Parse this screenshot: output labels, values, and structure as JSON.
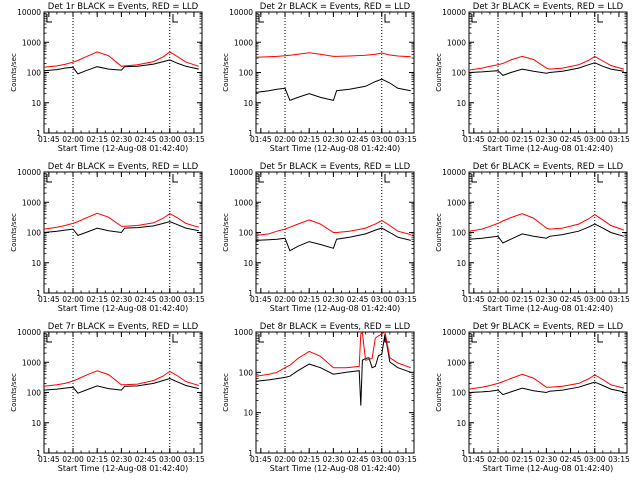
{
  "figure": {
    "colors": {
      "events": "#000000",
      "lld": "#ff0000",
      "axes": "#000000",
      "background": "#ffffff"
    }
  },
  "chart_data": [
    {
      "type": "line",
      "title": "Det 1r BLACK = Events, RED = LLD",
      "xlabel": "Start Time (12-Aug-08 01:42:40)",
      "ylabel": "Counts/sec",
      "y_scale": "log",
      "ylim": [
        1,
        10000
      ],
      "y_tick_labels": [
        "1",
        "10",
        "100",
        "1000",
        "10000"
      ],
      "x_tick_labels": [
        "01:45",
        "02:00",
        "02:15",
        "02:30",
        "02:45",
        "03:00",
        "03:15"
      ],
      "x": [
        "01:42",
        "01:50",
        "01:55",
        "02:00",
        "02:03",
        "02:08",
        "02:15",
        "02:22",
        "02:30",
        "02:32",
        "02:40",
        "02:50",
        "02:56",
        "03:00",
        "03:05",
        "03:10",
        "03:18"
      ],
      "vlines": [
        "02:00",
        "03:00"
      ],
      "series": [
        {
          "name": "Events",
          "values": [
            115,
            125,
            140,
            150,
            90,
            115,
            155,
            130,
            120,
            155,
            160,
            190,
            230,
            260,
            200,
            160,
            130
          ]
        },
        {
          "name": "LLD",
          "values": [
            150,
            165,
            185,
            220,
            250,
            330,
            480,
            360,
            160,
            165,
            180,
            230,
            330,
            480,
            330,
            220,
            160
          ]
        }
      ]
    },
    {
      "type": "line",
      "title": "Det 2r BLACK = Events, RED = LLD",
      "xlabel": "Start Time (12-Aug-08 01:42:40)",
      "ylabel": "Counts/sec",
      "y_scale": "log",
      "ylim": [
        1,
        10000
      ],
      "y_tick_labels": [
        "1",
        "10",
        "100",
        "1000",
        "10000"
      ],
      "x_tick_labels": [
        "01:45",
        "02:00",
        "02:15",
        "02:30",
        "02:45",
        "03:00",
        "03:15"
      ],
      "x": [
        "01:42",
        "01:50",
        "01:55",
        "02:00",
        "02:03",
        "02:08",
        "02:15",
        "02:22",
        "02:30",
        "02:32",
        "02:40",
        "02:50",
        "02:56",
        "03:00",
        "03:05",
        "03:10",
        "03:18"
      ],
      "vlines": [
        "02:00",
        "03:00"
      ],
      "series": [
        {
          "name": "Events",
          "values": [
            22,
            25,
            28,
            30,
            12,
            15,
            20,
            15,
            12,
            25,
            28,
            35,
            50,
            60,
            45,
            30,
            25
          ]
        },
        {
          "name": "LLD",
          "values": [
            320,
            330,
            340,
            360,
            370,
            400,
            450,
            400,
            340,
            340,
            350,
            370,
            400,
            440,
            380,
            350,
            330
          ]
        }
      ]
    },
    {
      "type": "line",
      "title": "Det 3r BLACK = Events, RED = LLD",
      "xlabel": "Start Time (12-Aug-08 01:42:40)",
      "ylabel": "Counts/sec",
      "y_scale": "log",
      "ylim": [
        1,
        10000
      ],
      "y_tick_labels": [
        "1",
        "10",
        "100",
        "1000",
        "10000"
      ],
      "x_tick_labels": [
        "01:45",
        "02:00",
        "02:15",
        "02:30",
        "02:45",
        "03:00",
        "03:15"
      ],
      "x": [
        "01:42",
        "01:50",
        "01:55",
        "02:00",
        "02:03",
        "02:08",
        "02:15",
        "02:22",
        "02:30",
        "02:32",
        "02:40",
        "02:50",
        "02:56",
        "03:00",
        "03:05",
        "03:10",
        "03:18"
      ],
      "vlines": [
        "02:00",
        "03:00"
      ],
      "series": [
        {
          "name": "Events",
          "values": [
            100,
            105,
            110,
            115,
            80,
            100,
            130,
            110,
            95,
            100,
            110,
            140,
            180,
            210,
            160,
            130,
            110
          ]
        },
        {
          "name": "LLD",
          "values": [
            120,
            140,
            160,
            180,
            200,
            260,
            340,
            270,
            140,
            130,
            140,
            180,
            250,
            340,
            240,
            170,
            130
          ]
        }
      ]
    },
    {
      "type": "line",
      "title": "Det 4r BLACK = Events, RED = LLD",
      "xlabel": "Start Time (12-Aug-08 01:42:40)",
      "ylabel": "Counts/sec",
      "y_scale": "log",
      "ylim": [
        1,
        10000
      ],
      "y_tick_labels": [
        "1",
        "10",
        "100",
        "1000",
        "10000"
      ],
      "x_tick_labels": [
        "01:45",
        "02:00",
        "02:15",
        "02:30",
        "02:45",
        "03:00",
        "03:15"
      ],
      "x": [
        "01:42",
        "01:50",
        "01:55",
        "02:00",
        "02:03",
        "02:08",
        "02:15",
        "02:22",
        "02:30",
        "02:32",
        "02:40",
        "02:50",
        "02:56",
        "03:00",
        "03:05",
        "03:10",
        "03:18"
      ],
      "vlines": [
        "02:00",
        "03:00"
      ],
      "series": [
        {
          "name": "Events",
          "values": [
            100,
            110,
            120,
            130,
            80,
            100,
            140,
            115,
            100,
            140,
            145,
            165,
            200,
            230,
            180,
            140,
            115
          ]
        },
        {
          "name": "LLD",
          "values": [
            130,
            150,
            170,
            200,
            230,
            300,
            430,
            320,
            160,
            160,
            170,
            210,
            300,
            420,
            300,
            200,
            150
          ]
        }
      ]
    },
    {
      "type": "line",
      "title": "Det 5r BLACK = Events, RED = LLD",
      "xlabel": "Start Time (12-Aug-08 01:42:40)",
      "ylabel": "Counts/sec",
      "y_scale": "log",
      "ylim": [
        1,
        10000
      ],
      "y_tick_labels": [
        "1",
        "10",
        "100",
        "1000",
        "10000"
      ],
      "x_tick_labels": [
        "01:45",
        "02:00",
        "02:15",
        "02:30",
        "02:45",
        "03:00",
        "03:15"
      ],
      "x": [
        "01:42",
        "01:50",
        "01:55",
        "02:00",
        "02:03",
        "02:08",
        "02:15",
        "02:22",
        "02:30",
        "02:32",
        "02:40",
        "02:50",
        "02:56",
        "03:00",
        "03:05",
        "03:10",
        "03:18"
      ],
      "vlines": [
        "02:00",
        "03:00"
      ],
      "series": [
        {
          "name": "Events",
          "values": [
            55,
            58,
            60,
            65,
            25,
            35,
            50,
            40,
            30,
            60,
            70,
            90,
            120,
            140,
            100,
            70,
            55
          ]
        },
        {
          "name": "LLD",
          "values": [
            80,
            90,
            110,
            130,
            150,
            190,
            260,
            190,
            100,
            100,
            110,
            140,
            190,
            250,
            170,
            110,
            85
          ]
        }
      ]
    },
    {
      "type": "line",
      "title": "Det 6r BLACK = Events, RED = LLD",
      "xlabel": "Start Time (12-Aug-08 01:42:40)",
      "ylabel": "Counts/sec",
      "y_scale": "log",
      "ylim": [
        1,
        10000
      ],
      "y_tick_labels": [
        "1",
        "10",
        "100",
        "1000",
        "10000"
      ],
      "x_tick_labels": [
        "01:45",
        "02:00",
        "02:15",
        "02:30",
        "02:45",
        "03:00",
        "03:15"
      ],
      "x": [
        "01:42",
        "01:50",
        "01:55",
        "02:00",
        "02:03",
        "02:08",
        "02:15",
        "02:22",
        "02:30",
        "02:32",
        "02:40",
        "02:50",
        "02:56",
        "03:00",
        "03:05",
        "03:10",
        "03:18"
      ],
      "vlines": [
        "02:00",
        "03:00"
      ],
      "series": [
        {
          "name": "Events",
          "values": [
            60,
            65,
            70,
            75,
            45,
            60,
            90,
            75,
            65,
            75,
            85,
            110,
            150,
            190,
            140,
            100,
            75
          ]
        },
        {
          "name": "LLD",
          "values": [
            110,
            130,
            160,
            200,
            240,
            310,
            420,
            300,
            140,
            130,
            140,
            190,
            280,
            390,
            260,
            170,
            120
          ]
        }
      ]
    },
    {
      "type": "line",
      "title": "Det 7r BLACK = Events, RED = LLD",
      "xlabel": "Start Time (12-Aug-08 01:42:40)",
      "ylabel": "Counts/sec",
      "y_scale": "log",
      "ylim": [
        1,
        10000
      ],
      "y_tick_labels": [
        "1",
        "10",
        "100",
        "1000",
        "10000"
      ],
      "x_tick_labels": [
        "01:45",
        "02:00",
        "02:15",
        "02:30",
        "02:45",
        "03:00",
        "03:15"
      ],
      "x": [
        "01:42",
        "01:50",
        "01:55",
        "02:00",
        "02:03",
        "02:08",
        "02:15",
        "02:22",
        "02:30",
        "02:32",
        "02:40",
        "02:50",
        "02:56",
        "03:00",
        "03:05",
        "03:10",
        "03:18"
      ],
      "vlines": [
        "02:00",
        "03:00"
      ],
      "series": [
        {
          "name": "Events",
          "values": [
            120,
            130,
            140,
            150,
            95,
            120,
            165,
            135,
            120,
            160,
            165,
            200,
            250,
            290,
            220,
            170,
            135
          ]
        },
        {
          "name": "LLD",
          "values": [
            160,
            180,
            200,
            240,
            280,
            370,
            520,
            390,
            180,
            180,
            190,
            250,
            350,
            500,
            350,
            230,
            170
          ]
        }
      ]
    },
    {
      "type": "line",
      "title": "Det 8r BLACK = Events, RED = LLD",
      "xlabel": "Start Time (12-Aug-08 01:42:40)",
      "ylabel": "Counts/sec",
      "y_scale": "log",
      "ylim": [
        1,
        1000
      ],
      "y_tick_labels": [
        "1",
        "10",
        "100",
        "1000"
      ],
      "x_tick_labels": [
        "01:45",
        "02:00",
        "02:15",
        "02:30",
        "02:45",
        "03:00",
        "03:15"
      ],
      "x": [
        "01:42",
        "01:50",
        "01:55",
        "02:00",
        "02:03",
        "02:08",
        "02:15",
        "02:22",
        "02:30",
        "02:38",
        "02:46",
        "02:47",
        "02:48",
        "02:50",
        "02:52",
        "02:54",
        "02:56",
        "02:58",
        "03:00",
        "03:02",
        "03:05",
        "03:10",
        "03:18"
      ],
      "vlines": [
        "02:00",
        "03:00"
      ],
      "series": [
        {
          "name": "Events",
          "values": [
            60,
            65,
            70,
            75,
            80,
            110,
            160,
            130,
            90,
            100,
            110,
            15,
            200,
            220,
            230,
            130,
            140,
            260,
            280,
            900,
            180,
            130,
            100
          ]
        },
        {
          "name": "LLD",
          "values": [
            80,
            90,
            100,
            130,
            150,
            220,
            330,
            250,
            130,
            130,
            140,
            900,
            950,
            200,
            210,
            220,
            700,
            800,
            900,
            1000,
            230,
            170,
            130
          ]
        }
      ]
    },
    {
      "type": "line",
      "title": "Det 9r BLACK = Events, RED = LLD",
      "xlabel": "Start Time (12-Aug-08 01:42:40)",
      "ylabel": "Counts/sec",
      "y_scale": "log",
      "ylim": [
        1,
        10000
      ],
      "y_tick_labels": [
        "1",
        "10",
        "100",
        "1000",
        "10000"
      ],
      "x_tick_labels": [
        "01:45",
        "02:00",
        "02:15",
        "02:30",
        "02:45",
        "03:00",
        "03:15"
      ],
      "x": [
        "01:42",
        "01:50",
        "01:55",
        "02:00",
        "02:03",
        "02:08",
        "02:15",
        "02:22",
        "02:30",
        "02:32",
        "02:40",
        "02:50",
        "02:56",
        "03:00",
        "03:05",
        "03:10",
        "03:18"
      ],
      "vlines": [
        "02:00",
        "03:00"
      ],
      "series": [
        {
          "name": "Events",
          "values": [
            100,
            105,
            110,
            120,
            85,
            105,
            140,
            115,
            100,
            110,
            120,
            150,
            190,
            220,
            170,
            130,
            105
          ]
        },
        {
          "name": "LLD",
          "values": [
            130,
            150,
            170,
            200,
            230,
            290,
            400,
            300,
            150,
            150,
            160,
            200,
            280,
            380,
            270,
            180,
            140
          ]
        }
      ]
    }
  ]
}
